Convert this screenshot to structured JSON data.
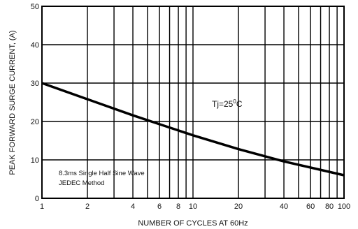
{
  "chart_data": {
    "type": "line",
    "title": "",
    "xlabel": "NUMBER OF CYCLES AT 60Hz",
    "ylabel": "PEAK FORWARD SURGE CURRENT, (A)",
    "x_scale": "log",
    "xlim": [
      1,
      100
    ],
    "ylim": [
      0,
      50
    ],
    "x_ticks": [
      1,
      2,
      4,
      6,
      8,
      10,
      20,
      40,
      60,
      80,
      100
    ],
    "x_tick_labels": [
      "1",
      "2",
      "4",
      "6",
      "8",
      "10",
      "20",
      "40",
      "60",
      "80",
      "100"
    ],
    "x_minor_gridlines": [
      1,
      2,
      3,
      4,
      5,
      6,
      7,
      8,
      9,
      10,
      20,
      30,
      40,
      50,
      60,
      70,
      80,
      90,
      100
    ],
    "y_ticks": [
      0,
      10,
      20,
      30,
      40,
      50
    ],
    "y_tick_labels": [
      "0",
      "10",
      "20",
      "30",
      "40",
      "50"
    ],
    "grid": true,
    "series": [
      {
        "x": [
          1,
          2,
          4,
          6,
          10,
          20,
          40,
          100
        ],
        "y": [
          30,
          25.8,
          21.6,
          19.3,
          16.4,
          12.8,
          9.6,
          6
        ]
      }
    ],
    "annotations": {
      "tj_prefix": "Tj=25",
      "tj_sup": "0",
      "tj_suffix": "C",
      "wave_line1": "8.3ms Single Half Sine Wave",
      "wave_line2": "JEDEC Method"
    }
  }
}
